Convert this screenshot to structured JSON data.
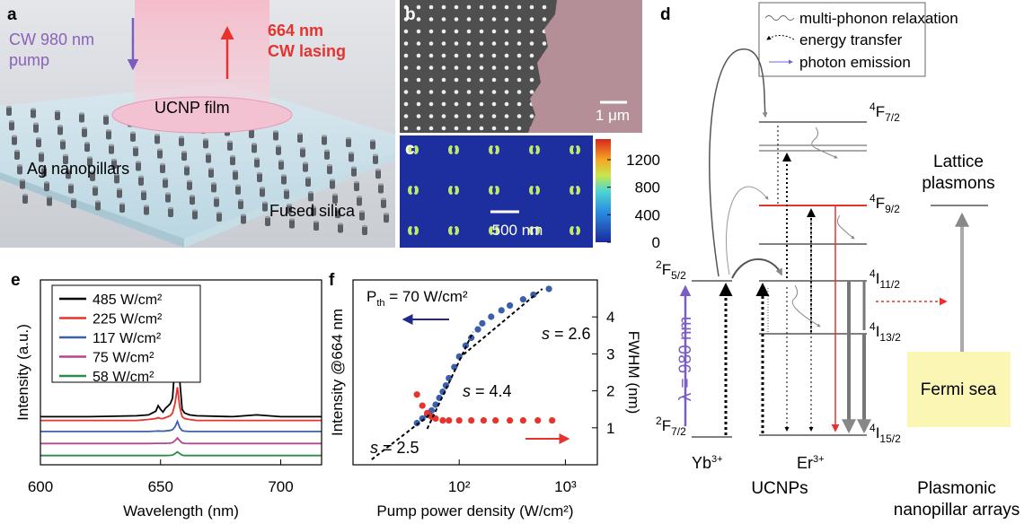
{
  "panels": {
    "a": {
      "label": "a",
      "pump": [
        "CW 980 nm",
        "pump"
      ],
      "lasing": [
        "664 nm",
        "CW lasing"
      ],
      "film": "UCNP film",
      "pillars": "Ag nanopillars",
      "substrate": "Fused silica"
    },
    "b": {
      "label": "b",
      "scale_bar": "1 μm"
    },
    "c": {
      "label": "c",
      "scale_bar": "500 nm",
      "colorbar_lim": [
        0,
        1500
      ],
      "colorbar_ticks": [
        0,
        400,
        800,
        1200
      ]
    },
    "d": {
      "label": "d",
      "legend": [
        "multi-phonon relaxation",
        "energy transfer",
        "photon emission"
      ],
      "yb_levels": [
        {
          "sup": "2",
          "term": "F",
          "sub": "5/2"
        },
        {
          "sup": "2",
          "term": "F",
          "sub": "7/2"
        }
      ],
      "er_levels": [
        {
          "sup": "4",
          "term": "F",
          "sub": "7/2"
        },
        {
          "sup": "4",
          "term": "F",
          "sub": "9/2"
        },
        {
          "sup": "4",
          "term": "I",
          "sub": "11/2"
        },
        {
          "sup": "4",
          "term": "I",
          "sub": "13/2"
        },
        {
          "sup": "4",
          "term": "I",
          "sub": "15/2"
        }
      ],
      "pump": "λ = 980 nm",
      "yb": {
        "term": "Yb",
        "sup": "3+"
      },
      "er": {
        "term": "Er",
        "sup": "3+"
      },
      "plasmons": [
        "Lattice",
        "plasmons"
      ],
      "fermi": "Fermi sea",
      "ucnps": "UCNPs",
      "arrays": [
        "Plasmonic",
        "nanopillar arrays"
      ]
    }
  },
  "chart_data": [
    {
      "type": "line",
      "label": "e",
      "xlabel": "Wavelength (nm)",
      "ylabel": "Intensity (a.u.)",
      "xlim": [
        600,
        717
      ],
      "xticks": [
        600,
        650,
        700
      ],
      "ylim": [
        0,
        10
      ],
      "legend": "upper left",
      "x": [
        600,
        620,
        640,
        645,
        648,
        649,
        650,
        651,
        652,
        654,
        655,
        656,
        657,
        658,
        659,
        660,
        662,
        665,
        680,
        690,
        700,
        717
      ],
      "series": [
        {
          "name": "485 W/cm²",
          "color": "#000000",
          "values": [
            2.6,
            2.6,
            2.65,
            2.7,
            2.9,
            3.2,
            3.0,
            2.85,
            3.05,
            3.3,
            3.6,
            5.5,
            8.9,
            4.5,
            3.0,
            2.8,
            2.7,
            2.65,
            2.6,
            2.7,
            2.6,
            2.6
          ]
        },
        {
          "name": "225 W/cm²",
          "color": "#e8322d",
          "values": [
            2.4,
            2.4,
            2.4,
            2.45,
            2.5,
            2.55,
            2.5,
            2.5,
            2.55,
            2.65,
            2.8,
            3.3,
            4.2,
            3.1,
            2.6,
            2.5,
            2.45,
            2.4,
            2.4,
            2.4,
            2.4,
            2.4
          ]
        },
        {
          "name": "117 W/cm²",
          "color": "#3a5fad",
          "values": [
            1.8,
            1.8,
            1.8,
            1.8,
            1.82,
            1.83,
            1.82,
            1.82,
            1.83,
            1.86,
            1.9,
            2.05,
            2.35,
            2.0,
            1.85,
            1.82,
            1.8,
            1.8,
            1.8,
            1.8,
            1.8,
            1.8
          ]
        },
        {
          "name": "75 W/cm²",
          "color": "#b6468f",
          "values": [
            1.15,
            1.15,
            1.15,
            1.15,
            1.16,
            1.16,
            1.16,
            1.16,
            1.16,
            1.17,
            1.2,
            1.3,
            1.45,
            1.3,
            1.18,
            1.16,
            1.15,
            1.15,
            1.15,
            1.15,
            1.15,
            1.15
          ]
        },
        {
          "name": "58 W/cm²",
          "color": "#2e8b46",
          "values": [
            0.5,
            0.5,
            0.5,
            0.5,
            0.5,
            0.5,
            0.5,
            0.5,
            0.5,
            0.51,
            0.53,
            0.6,
            0.7,
            0.6,
            0.52,
            0.5,
            0.5,
            0.5,
            0.5,
            0.5,
            0.5,
            0.5
          ]
        }
      ]
    },
    {
      "type": "scatter",
      "label": "f",
      "xlabel": "Pump power density (W/cm²)",
      "ylabel": "Intensity @664 nm",
      "y2label": "FWHM (nm)",
      "xscale": "log",
      "yscale": "log",
      "xlim": [
        10,
        2000
      ],
      "xticks": [
        {
          "value": 100,
          "label": "10²"
        },
        {
          "value": 1000,
          "label": "10³"
        }
      ],
      "ylim": [
        1,
        10000
      ],
      "y2lim": [
        0,
        5
      ],
      "y2ticks": [
        1,
        2,
        3,
        4
      ],
      "series": [
        {
          "color": "#3a5fad",
          "x": [
            40,
            45,
            50,
            55,
            60,
            65,
            70,
            75,
            80,
            90,
            100,
            115,
            130,
            150,
            165,
            200,
            250,
            300,
            400,
            500,
            700
          ],
          "values": [
            8,
            10,
            12,
            15,
            20,
            28,
            38,
            52,
            75,
            130,
            220,
            380,
            560,
            850,
            1150,
            1600,
            2200,
            2800,
            3800,
            4800,
            6400
          ]
        },
        {
          "color": "#e8322d",
          "axis": "y2",
          "x": [
            40,
            45,
            50,
            55,
            60,
            70,
            80,
            100,
            130,
            170,
            220,
            300,
            400,
            550,
            750
          ],
          "values": [
            1.9,
            1.6,
            1.4,
            1.3,
            1.25,
            1.2,
            1.2,
            1.2,
            1.2,
            1.2,
            1.2,
            1.2,
            1.2,
            1.2,
            1.2
          ]
        }
      ],
      "fits": [
        {
          "x": [
            15,
            55
          ],
          "values": [
            1.3,
            13
          ]
        },
        {
          "x": [
            50,
            135
          ],
          "values": [
            6,
            750
          ]
        },
        {
          "x": [
            110,
            606
          ],
          "values": [
            245,
            6400
          ]
        }
      ],
      "annotations": {
        "threshold": [
          "P",
          "th",
          " = 70 W/cm²"
        ],
        "slopes": [
          [
            "s",
            " = 2.5"
          ],
          [
            "s",
            " = 4.4"
          ],
          [
            "s",
            " = 2.6"
          ]
        ]
      }
    }
  ]
}
